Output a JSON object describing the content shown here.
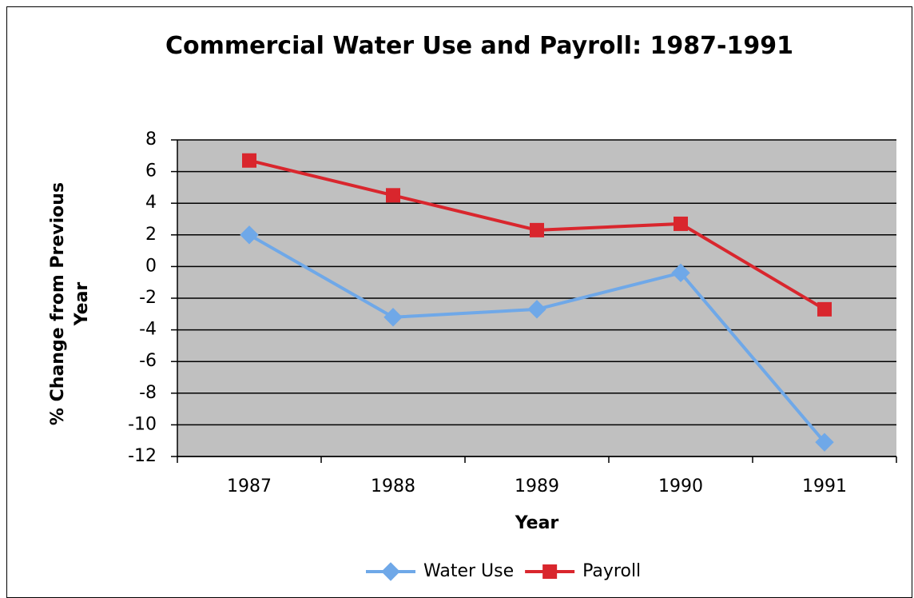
{
  "chart_data": {
    "type": "line",
    "title": "Commercial Water Use and Payroll: 1987-1991",
    "x_label": "Year",
    "y_label": "% Change from Previous Year",
    "categories": [
      "1987",
      "1988",
      "1989",
      "1990",
      "1991"
    ],
    "series": [
      {
        "name": "Water Use",
        "color": "#6fa8e8",
        "marker": "diamond",
        "values": [
          2,
          -3.2,
          -2.7,
          -0.4,
          -11.1
        ]
      },
      {
        "name": "Payroll",
        "color": "#d9262d",
        "marker": "square",
        "values": [
          6.7,
          4.5,
          2.3,
          2.7,
          -2.7
        ]
      }
    ],
    "ylim": [
      -12,
      8
    ],
    "yticks": [
      -12,
      -10,
      -8,
      -6,
      -4,
      -2,
      0,
      2,
      4,
      6,
      8
    ],
    "grid": true,
    "legend": "bottom"
  }
}
